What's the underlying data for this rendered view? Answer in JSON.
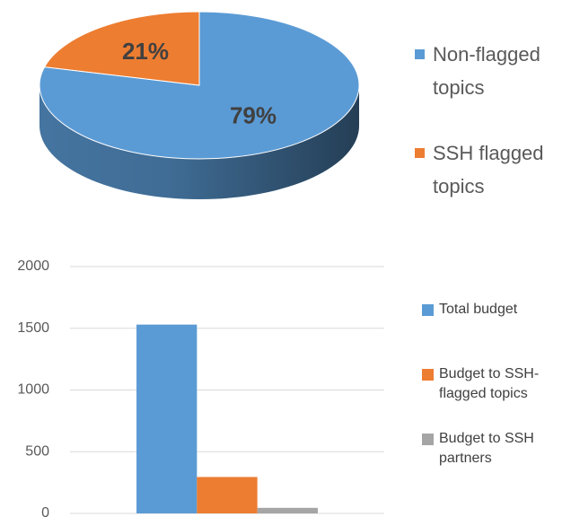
{
  "chart_data": [
    {
      "type": "pie",
      "labels": [
        "Non-flagged topics",
        "SSH flagged topics"
      ],
      "values": [
        79,
        21
      ],
      "value_labels": [
        "79%",
        "21%"
      ],
      "colors": [
        "#5b9bd5",
        "#ed7d31"
      ],
      "legend": "right"
    },
    {
      "type": "bar",
      "categories": [
        null
      ],
      "series": [
        {
          "name": "Total budget",
          "color": "#5b9bd5",
          "values": [
            1530
          ]
        },
        {
          "name": "Budget to SSH-flagged topics",
          "color": "#ed7d31",
          "values": [
            295
          ]
        },
        {
          "name": "Budget to SSH partners",
          "color": "#a5a5a5",
          "values": [
            45
          ]
        }
      ],
      "ylim": [
        0,
        2000
      ],
      "yticks": [
        0,
        500,
        1000,
        1500,
        2000
      ],
      "grid": true,
      "legend": "right"
    }
  ]
}
